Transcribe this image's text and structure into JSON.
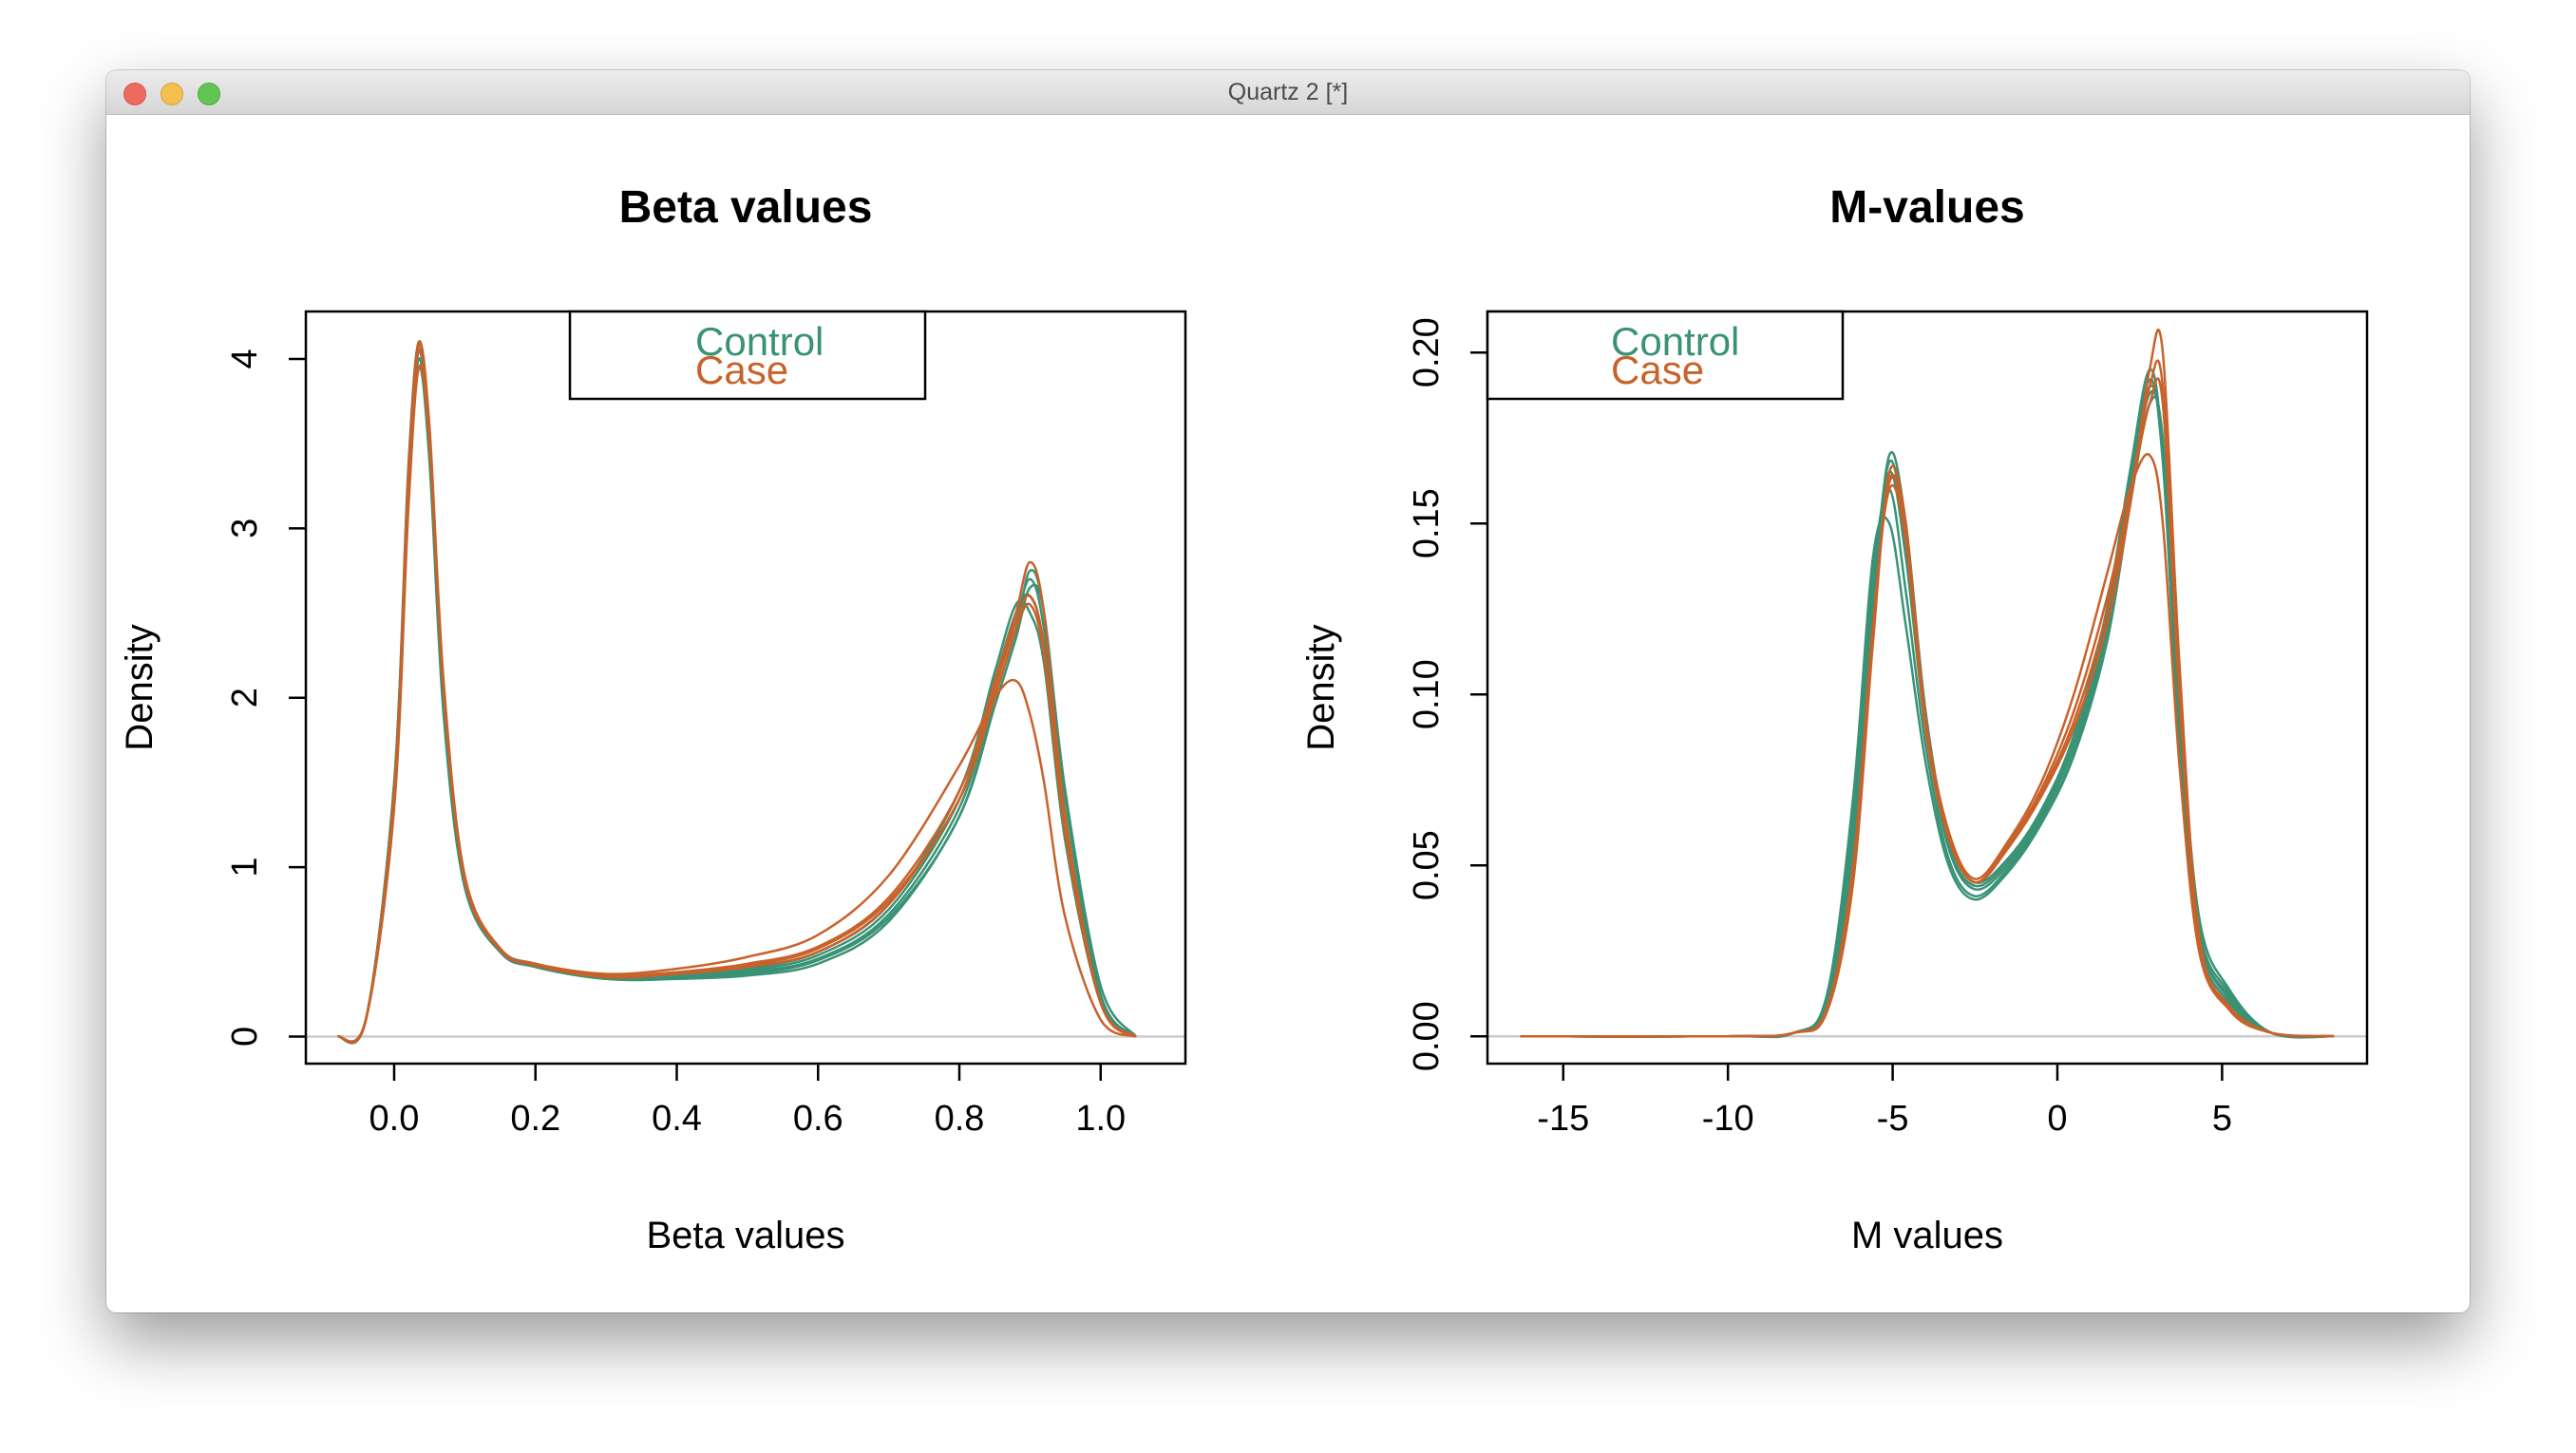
{
  "window": {
    "title": "Quartz 2 [*]"
  },
  "colors": {
    "control": "#3a9276",
    "case": "#c8622b",
    "baseline": "#cccccc"
  },
  "chart_data": [
    {
      "type": "line",
      "title": "Beta values",
      "xlabel": "Beta values",
      "ylabel": "Density",
      "xlim": [
        -0.125,
        1.12
      ],
      "ylim": [
        -0.16,
        4.28
      ],
      "xticks": [
        0.0,
        0.2,
        0.4,
        0.6,
        0.8,
        1.0
      ],
      "xtick_labels": [
        "0.0",
        "0.2",
        "0.4",
        "0.6",
        "0.8",
        "1.0"
      ],
      "yticks": [
        0,
        1,
        2,
        3,
        4
      ],
      "ytick_labels": [
        "0",
        "1",
        "2",
        "3",
        "4"
      ],
      "grid": false,
      "legend": {
        "position": "top-center",
        "entries": [
          "Control",
          "Case"
        ]
      },
      "series": [
        {
          "group": "Control",
          "x": [
            -0.08,
            -0.04,
            0.0,
            0.02,
            0.035,
            0.05,
            0.07,
            0.1,
            0.15,
            0.2,
            0.3,
            0.4,
            0.5,
            0.6,
            0.7,
            0.8,
            0.85,
            0.88,
            0.9,
            0.92,
            0.95,
            1.0,
            1.05
          ],
          "y": [
            0.0,
            0.1,
            1.5,
            3.3,
            4.1,
            3.5,
            2.0,
            0.9,
            0.5,
            0.42,
            0.35,
            0.36,
            0.39,
            0.48,
            0.75,
            1.4,
            2.1,
            2.5,
            2.6,
            2.3,
            1.2,
            0.2,
            0.0
          ]
        },
        {
          "group": "Control",
          "x": [
            -0.08,
            -0.04,
            0.0,
            0.02,
            0.035,
            0.05,
            0.07,
            0.1,
            0.15,
            0.2,
            0.3,
            0.4,
            0.5,
            0.6,
            0.7,
            0.8,
            0.85,
            0.88,
            0.9,
            0.92,
            0.95,
            1.0,
            1.05
          ],
          "y": [
            0.0,
            0.1,
            1.4,
            3.2,
            3.95,
            3.4,
            1.95,
            0.9,
            0.5,
            0.42,
            0.35,
            0.36,
            0.38,
            0.46,
            0.72,
            1.35,
            2.05,
            2.45,
            2.7,
            2.4,
            1.3,
            0.22,
            0.0
          ]
        },
        {
          "group": "Control",
          "x": [
            -0.08,
            -0.04,
            0.0,
            0.02,
            0.035,
            0.05,
            0.07,
            0.1,
            0.15,
            0.2,
            0.3,
            0.4,
            0.5,
            0.6,
            0.7,
            0.8,
            0.85,
            0.88,
            0.9,
            0.92,
            0.95,
            1.0,
            1.05
          ],
          "y": [
            0.0,
            0.1,
            1.45,
            3.3,
            4.05,
            3.45,
            2.0,
            0.92,
            0.52,
            0.43,
            0.36,
            0.37,
            0.4,
            0.5,
            0.78,
            1.45,
            2.15,
            2.55,
            2.5,
            2.2,
            1.15,
            0.2,
            0.0
          ]
        },
        {
          "group": "Control",
          "x": [
            -0.08,
            -0.04,
            0.0,
            0.02,
            0.035,
            0.05,
            0.07,
            0.1,
            0.15,
            0.2,
            0.3,
            0.4,
            0.5,
            0.6,
            0.7,
            0.8,
            0.85,
            0.88,
            0.9,
            0.92,
            0.95,
            1.0,
            1.05
          ],
          "y": [
            0.0,
            0.1,
            1.5,
            3.35,
            4.1,
            3.5,
            2.0,
            0.9,
            0.5,
            0.41,
            0.34,
            0.35,
            0.37,
            0.45,
            0.7,
            1.3,
            2.0,
            2.4,
            2.75,
            2.5,
            1.4,
            0.25,
            0.0
          ]
        },
        {
          "group": "Control",
          "x": [
            -0.08,
            -0.04,
            0.0,
            0.02,
            0.035,
            0.05,
            0.07,
            0.1,
            0.15,
            0.2,
            0.3,
            0.4,
            0.5,
            0.6,
            0.7,
            0.8,
            0.85,
            0.88,
            0.9,
            0.92,
            0.95,
            1.0,
            1.05
          ],
          "y": [
            0.0,
            0.1,
            1.4,
            3.2,
            4.0,
            3.4,
            1.9,
            0.88,
            0.5,
            0.42,
            0.34,
            0.34,
            0.36,
            0.43,
            0.68,
            1.3,
            1.95,
            2.35,
            2.65,
            2.5,
            1.45,
            0.3,
            0.0
          ]
        },
        {
          "group": "Case",
          "x": [
            -0.08,
            -0.04,
            0.0,
            0.02,
            0.035,
            0.05,
            0.07,
            0.1,
            0.15,
            0.2,
            0.3,
            0.4,
            0.5,
            0.6,
            0.7,
            0.8,
            0.85,
            0.88,
            0.9,
            0.92,
            0.95,
            1.0,
            1.05
          ],
          "y": [
            0.0,
            0.1,
            1.4,
            3.2,
            4.08,
            3.6,
            2.1,
            0.95,
            0.52,
            0.43,
            0.37,
            0.4,
            0.47,
            0.6,
            0.95,
            1.6,
            2.0,
            2.1,
            1.9,
            1.5,
            0.7,
            0.1,
            0.0
          ]
        },
        {
          "group": "Case",
          "x": [
            -0.08,
            -0.04,
            0.0,
            0.02,
            0.035,
            0.05,
            0.07,
            0.1,
            0.15,
            0.2,
            0.3,
            0.4,
            0.5,
            0.6,
            0.7,
            0.8,
            0.85,
            0.88,
            0.9,
            0.92,
            0.95,
            1.0,
            1.05
          ],
          "y": [
            0.0,
            0.1,
            1.35,
            3.1,
            3.95,
            3.5,
            2.05,
            0.93,
            0.52,
            0.42,
            0.36,
            0.38,
            0.43,
            0.53,
            0.82,
            1.45,
            2.1,
            2.5,
            2.8,
            2.5,
            1.3,
            0.2,
            0.0
          ]
        },
        {
          "group": "Case",
          "x": [
            -0.08,
            -0.04,
            0.0,
            0.02,
            0.035,
            0.05,
            0.07,
            0.1,
            0.15,
            0.2,
            0.3,
            0.4,
            0.5,
            0.6,
            0.7,
            0.8,
            0.85,
            0.88,
            0.9,
            0.92,
            0.95,
            1.0,
            1.05
          ],
          "y": [
            0.0,
            0.1,
            1.4,
            3.25,
            4.05,
            3.55,
            2.05,
            0.93,
            0.52,
            0.42,
            0.36,
            0.38,
            0.42,
            0.52,
            0.8,
            1.4,
            2.05,
            2.45,
            2.6,
            2.3,
            1.2,
            0.2,
            0.0
          ]
        },
        {
          "group": "Case",
          "x": [
            -0.08,
            -0.04,
            0.0,
            0.02,
            0.035,
            0.05,
            0.07,
            0.1,
            0.15,
            0.2,
            0.3,
            0.4,
            0.5,
            0.6,
            0.7,
            0.8,
            0.85,
            0.88,
            0.9,
            0.92,
            0.95,
            1.0,
            1.05
          ],
          "y": [
            0.0,
            0.1,
            1.45,
            3.3,
            4.1,
            3.55,
            2.05,
            0.92,
            0.51,
            0.42,
            0.35,
            0.37,
            0.41,
            0.5,
            0.78,
            1.4,
            2.0,
            2.4,
            2.55,
            2.25,
            1.2,
            0.2,
            0.0
          ]
        }
      ]
    },
    {
      "type": "line",
      "title": "M-values",
      "xlabel": "M values",
      "ylabel": "Density",
      "xlim": [
        -17.3,
        9.4
      ],
      "ylim": [
        -0.008,
        0.212
      ],
      "xticks": [
        -15,
        -10,
        -5,
        0,
        5
      ],
      "xtick_labels": [
        "-15",
        "-10",
        "-5",
        "0",
        "5"
      ],
      "yticks": [
        0.0,
        0.05,
        0.1,
        0.15,
        0.2
      ],
      "ytick_labels": [
        "0.00",
        "0.05",
        "0.10",
        "0.15",
        "0.20"
      ],
      "grid": false,
      "legend": {
        "position": "top-left",
        "entries": [
          "Control",
          "Case"
        ]
      },
      "series": [
        {
          "group": "Control",
          "x": [
            -16.3,
            -10,
            -8,
            -7,
            -6.2,
            -5.6,
            -5.1,
            -4.6,
            -4.0,
            -3.3,
            -2.5,
            -1.5,
            -0.5,
            0.5,
            1.5,
            2.2,
            2.8,
            3.2,
            3.7,
            4.3,
            5.2,
            6.5,
            8.4
          ],
          "y": [
            0.0,
            0.0,
            0.001,
            0.01,
            0.06,
            0.13,
            0.165,
            0.14,
            0.09,
            0.055,
            0.043,
            0.05,
            0.064,
            0.085,
            0.12,
            0.16,
            0.19,
            0.17,
            0.09,
            0.03,
            0.012,
            0.001,
            0.0
          ]
        },
        {
          "group": "Control",
          "x": [
            -16.3,
            -10,
            -8,
            -7,
            -6.2,
            -5.6,
            -5.1,
            -4.6,
            -4.0,
            -3.3,
            -2.5,
            -1.5,
            -0.5,
            0.5,
            1.5,
            2.2,
            2.8,
            3.2,
            3.7,
            4.3,
            5.2,
            6.5,
            8.4
          ],
          "y": [
            0.0,
            0.0,
            0.001,
            0.012,
            0.07,
            0.14,
            0.15,
            0.12,
            0.08,
            0.05,
            0.04,
            0.048,
            0.062,
            0.082,
            0.115,
            0.155,
            0.185,
            0.175,
            0.1,
            0.035,
            0.014,
            0.001,
            0.0
          ]
        },
        {
          "group": "Control",
          "x": [
            -16.3,
            -10,
            -8,
            -7,
            -6.2,
            -5.6,
            -5.1,
            -4.6,
            -4.0,
            -3.3,
            -2.5,
            -1.5,
            -0.5,
            0.5,
            1.5,
            2.2,
            2.8,
            3.2,
            3.7,
            4.3,
            5.2,
            6.5,
            8.4
          ],
          "y": [
            0.0,
            0.0,
            0.001,
            0.009,
            0.055,
            0.125,
            0.17,
            0.15,
            0.095,
            0.058,
            0.045,
            0.052,
            0.066,
            0.088,
            0.125,
            0.165,
            0.195,
            0.17,
            0.085,
            0.028,
            0.01,
            0.001,
            0.0
          ]
        },
        {
          "group": "Control",
          "x": [
            -16.3,
            -10,
            -8,
            -7,
            -6.2,
            -5.6,
            -5.1,
            -4.6,
            -4.0,
            -3.3,
            -2.5,
            -1.5,
            -0.5,
            0.5,
            1.5,
            2.2,
            2.8,
            3.2,
            3.7,
            4.3,
            5.2,
            6.5,
            8.4
          ],
          "y": [
            0.0,
            0.0,
            0.001,
            0.011,
            0.065,
            0.135,
            0.16,
            0.13,
            0.085,
            0.052,
            0.041,
            0.049,
            0.063,
            0.083,
            0.118,
            0.158,
            0.188,
            0.172,
            0.095,
            0.032,
            0.013,
            0.001,
            0.0
          ]
        },
        {
          "group": "Control",
          "x": [
            -16.3,
            -10,
            -8,
            -7,
            -6.2,
            -5.6,
            -5.1,
            -4.6,
            -4.0,
            -3.3,
            -2.5,
            -1.5,
            -0.5,
            0.5,
            1.5,
            2.2,
            2.8,
            3.2,
            3.7,
            4.3,
            5.2,
            6.5,
            8.4
          ],
          "y": [
            0.0,
            0.0,
            0.001,
            0.01,
            0.058,
            0.128,
            0.168,
            0.145,
            0.092,
            0.056,
            0.044,
            0.051,
            0.065,
            0.086,
            0.122,
            0.162,
            0.192,
            0.168,
            0.088,
            0.03,
            0.011,
            0.001,
            0.0
          ]
        },
        {
          "group": "Case",
          "x": [
            -16.3,
            -10,
            -8,
            -7,
            -6.2,
            -5.6,
            -5.1,
            -4.6,
            -4.0,
            -3.3,
            -2.5,
            -1.5,
            -0.5,
            0.5,
            1.5,
            2.2,
            2.8,
            3.2,
            3.7,
            4.3,
            5.2,
            6.5,
            8.4
          ],
          "y": [
            0.0,
            0.0,
            0.001,
            0.008,
            0.05,
            0.12,
            0.16,
            0.145,
            0.09,
            0.058,
            0.045,
            0.055,
            0.07,
            0.09,
            0.12,
            0.155,
            0.195,
            0.2,
            0.11,
            0.03,
            0.008,
            0.001,
            0.0
          ]
        },
        {
          "group": "Case",
          "x": [
            -16.3,
            -10,
            -8,
            -7,
            -6.2,
            -5.6,
            -5.1,
            -4.6,
            -4.0,
            -3.3,
            -2.5,
            -1.5,
            -0.5,
            0.5,
            1.5,
            2.2,
            2.8,
            3.2,
            3.7,
            4.3,
            5.2,
            6.5,
            8.4
          ],
          "y": [
            0.0,
            0.0,
            0.001,
            0.007,
            0.045,
            0.115,
            0.165,
            0.15,
            0.093,
            0.06,
            0.046,
            0.057,
            0.074,
            0.1,
            0.135,
            0.16,
            0.17,
            0.15,
            0.08,
            0.025,
            0.008,
            0.001,
            0.0
          ]
        },
        {
          "group": "Case",
          "x": [
            -16.3,
            -10,
            -8,
            -7,
            -6.2,
            -5.6,
            -5.1,
            -4.6,
            -4.0,
            -3.3,
            -2.5,
            -1.5,
            -0.5,
            0.5,
            1.5,
            2.2,
            2.8,
            3.2,
            3.7,
            4.3,
            5.2,
            6.5,
            8.4
          ],
          "y": [
            0.0,
            0.0,
            0.001,
            0.008,
            0.048,
            0.118,
            0.162,
            0.148,
            0.091,
            0.059,
            0.045,
            0.056,
            0.072,
            0.095,
            0.128,
            0.158,
            0.185,
            0.185,
            0.1,
            0.028,
            0.009,
            0.001,
            0.0
          ]
        },
        {
          "group": "Case",
          "x": [
            -16.3,
            -10,
            -8,
            -7,
            -6.2,
            -5.6,
            -5.1,
            -4.6,
            -4.0,
            -3.3,
            -2.5,
            -1.5,
            -0.5,
            0.5,
            1.5,
            2.2,
            2.8,
            3.2,
            3.7,
            4.3,
            5.2,
            6.5,
            8.4
          ],
          "y": [
            0.0,
            0.0,
            0.001,
            0.008,
            0.049,
            0.119,
            0.163,
            0.147,
            0.09,
            0.058,
            0.045,
            0.055,
            0.071,
            0.092,
            0.124,
            0.158,
            0.19,
            0.19,
            0.105,
            0.029,
            0.009,
            0.001,
            0.0
          ]
        }
      ]
    }
  ]
}
